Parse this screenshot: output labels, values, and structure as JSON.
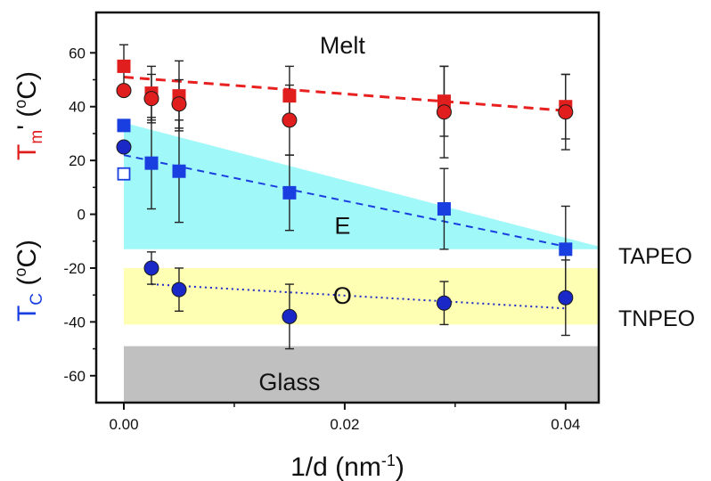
{
  "chart_data": {
    "type": "scatter",
    "xlabel": {
      "base": "1/d (nm",
      "sup": "-1",
      "close": ")"
    },
    "ylabel_tc": {
      "prefix": "T",
      "sub": "C",
      "rest": " (",
      "sup": "o",
      "unit": "C)"
    },
    "ylabel_tm": {
      "prefix": "T",
      "sub": "m",
      "rest": "' (",
      "sup": "o",
      "unit": "C)"
    },
    "xlim": [
      -0.0025,
      0.043
    ],
    "ylim": [
      -70,
      75
    ],
    "x_ticks": [
      0.0,
      0.02,
      0.04
    ],
    "x_tick_labels": [
      "0.00",
      "0.02",
      "0.04"
    ],
    "x_minor_ticks": [
      0.01,
      0.03
    ],
    "y_ticks": [
      -60,
      -40,
      -20,
      0,
      20,
      40,
      60
    ],
    "y_tick_labels": [
      "-60",
      "-40",
      "-20",
      "0",
      "20",
      "40",
      "60"
    ],
    "regions": [
      {
        "label": "Glass",
        "color": "#c0c0c0",
        "polygon": [
          [
            0,
            -70
          ],
          [
            0.043,
            -70
          ],
          [
            0.043,
            -49
          ],
          [
            0,
            -49
          ]
        ],
        "label_at": [
          0.015,
          -62
        ]
      },
      {
        "label": "O",
        "color": "#ffffb4",
        "polygon": [
          [
            0,
            -41
          ],
          [
            0.043,
            -41
          ],
          [
            0.043,
            -20
          ],
          [
            0,
            -20
          ]
        ],
        "label_at": [
          0.0198,
          -30
        ]
      },
      {
        "label": "E",
        "color": "#a0f8f8",
        "polygon": [
          [
            0,
            34
          ],
          [
            0.043,
            -12
          ],
          [
            0.043,
            -13
          ],
          [
            0,
            -13
          ]
        ],
        "label_at": [
          0.0198,
          -4
        ]
      },
      {
        "label": "Melt",
        "color": "#e02020",
        "polygon": [],
        "label_at": [
          0.0198,
          63
        ]
      }
    ],
    "side_labels": {
      "tapeo": "TAPEO",
      "tnpeo": "TNPEO"
    },
    "series": [
      {
        "marker": "square",
        "color": "#e01e1e",
        "x": [
          0.0,
          0.0025,
          0.005,
          0.015,
          0.029,
          0.04
        ],
        "y": [
          55,
          45,
          44,
          44,
          42,
          40
        ],
        "err": [
          8,
          10,
          13,
          11,
          13,
          12
        ]
      },
      {
        "marker": "circle",
        "color": "#e01e1e",
        "x": [
          0.0,
          0.0025,
          0.005,
          0.015,
          0.029,
          0.04
        ],
        "y": [
          46,
          43,
          41,
          35,
          38,
          38
        ],
        "err": [
          0,
          9,
          9,
          13,
          17,
          14
        ]
      },
      {
        "marker": "square",
        "color": "#1a3fe0",
        "x": [
          0.0,
          0.0025,
          0.005,
          0.015,
          0.029,
          0.04
        ],
        "y": [
          33,
          19,
          16,
          8,
          2,
          -13
        ],
        "err": [
          0,
          17,
          19,
          14,
          15,
          16
        ]
      },
      {
        "marker": "open-square",
        "color": "#1a3fe0",
        "x": [
          0.0
        ],
        "y": [
          15
        ],
        "err": [
          0
        ]
      },
      {
        "marker": "circle",
        "color": "#1a28c8",
        "x": [
          0.0,
          0.0025,
          0.005,
          0.015,
          0.029,
          0.04
        ],
        "y": [
          25,
          -20,
          -28,
          -38,
          -33,
          -31
        ],
        "err": [
          0,
          6,
          8,
          12,
          8,
          14
        ]
      }
    ],
    "fit_lines": [
      {
        "color": "#e82020",
        "style": "dash",
        "x": [
          0.0,
          0.04
        ],
        "y": [
          51,
          38.5
        ]
      },
      {
        "color": "#1a3fe0",
        "style": "dash",
        "x": [
          0.0,
          0.04
        ],
        "y": [
          22,
          -12
        ]
      },
      {
        "color": "#1a28c8",
        "style": "dot",
        "x": [
          0.0025,
          0.04
        ],
        "y": [
          -26,
          -35
        ]
      }
    ]
  }
}
